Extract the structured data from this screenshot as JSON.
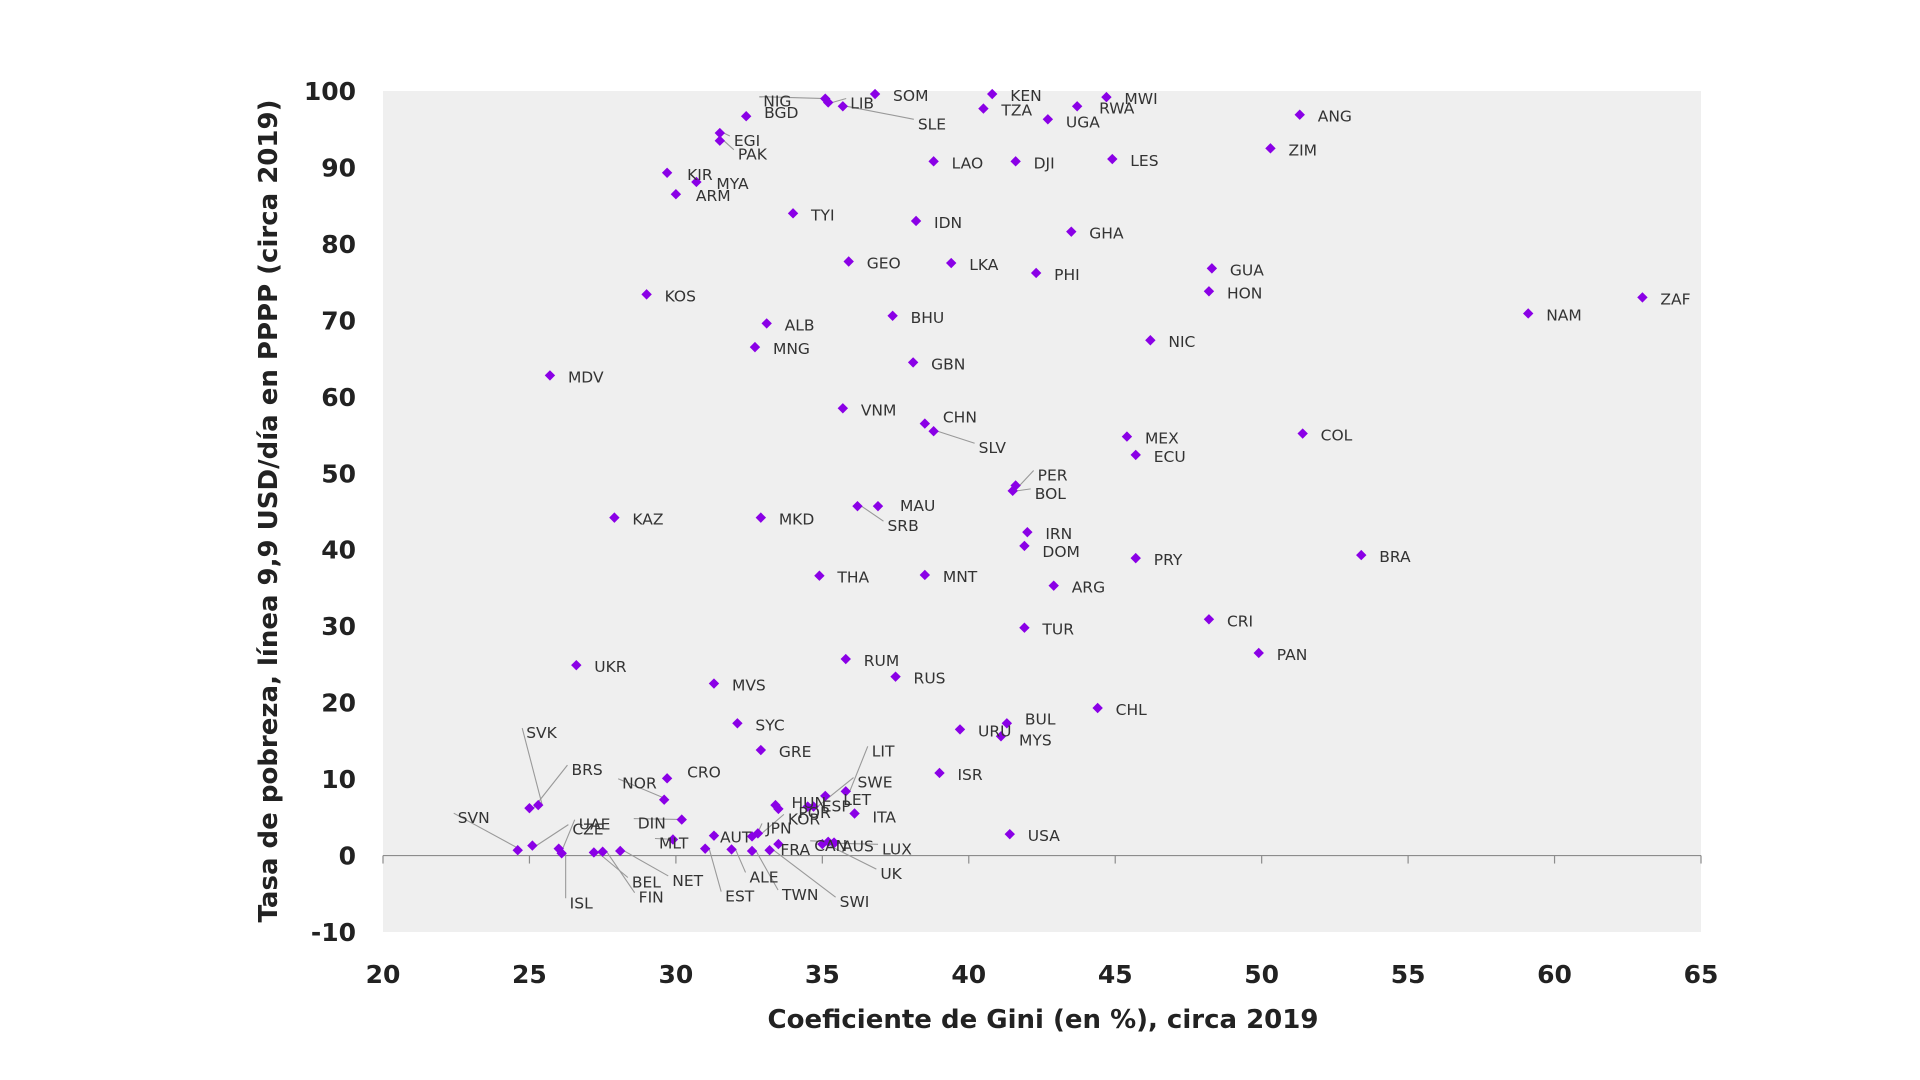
{
  "colors": {
    "marker": "#8a00e6",
    "plot_bg": "#efefef",
    "text": "#333333",
    "axis": "#666666"
  },
  "chart_data": {
    "type": "scatter",
    "xlabel": "Coeficiente de Gini (en %), circa 2019",
    "ylabel": "Tasa de pobreza, línea 9,9 USD/día en PPPP (circa 2019)",
    "xlim": [
      20,
      65
    ],
    "ylim": [
      -10,
      100
    ],
    "xticks": [
      20,
      25,
      30,
      35,
      40,
      45,
      50,
      55,
      60,
      65
    ],
    "yticks": [
      -10,
      0,
      10,
      20,
      30,
      40,
      50,
      60,
      70,
      80,
      90,
      100
    ],
    "grid": false,
    "points": [
      {
        "label": "SOM",
        "x": 36.8,
        "y": 99.6
      },
      {
        "label": "KEN",
        "x": 40.8,
        "y": 99.6
      },
      {
        "label": "MWI",
        "x": 44.7,
        "y": 99.2
      },
      {
        "label": "NIG",
        "x": 35.1,
        "y": 99.0
      },
      {
        "label": "LIB",
        "x": 35.2,
        "y": 98.5
      },
      {
        "label": "SLE",
        "x": 35.7,
        "y": 98.0
      },
      {
        "label": "RWA",
        "x": 43.7,
        "y": 98.0
      },
      {
        "label": "TZA",
        "x": 40.5,
        "y": 97.7
      },
      {
        "label": "BGD",
        "x": 32.4,
        "y": 96.7
      },
      {
        "label": "ANG",
        "x": 51.3,
        "y": 96.9
      },
      {
        "label": "UGA",
        "x": 42.7,
        "y": 96.3
      },
      {
        "label": "EGI",
        "x": 31.5,
        "y": 94.5
      },
      {
        "label": "PAK",
        "x": 31.5,
        "y": 93.5
      },
      {
        "label": "ZIM",
        "x": 50.3,
        "y": 92.5
      },
      {
        "label": "LAO",
        "x": 38.8,
        "y": 90.8
      },
      {
        "label": "DJI",
        "x": 41.6,
        "y": 90.8
      },
      {
        "label": "LES",
        "x": 44.9,
        "y": 91.1
      },
      {
        "label": "KIR",
        "x": 29.7,
        "y": 89.3
      },
      {
        "label": "MYA",
        "x": 30.7,
        "y": 88.1
      },
      {
        "label": "ARM",
        "x": 30.0,
        "y": 86.5
      },
      {
        "label": "TYI",
        "x": 34.0,
        "y": 84.0
      },
      {
        "label": "IDN",
        "x": 38.2,
        "y": 83.0
      },
      {
        "label": "GHA",
        "x": 43.5,
        "y": 81.6
      },
      {
        "label": "GEO",
        "x": 35.9,
        "y": 77.7
      },
      {
        "label": "LKA",
        "x": 39.4,
        "y": 77.5
      },
      {
        "label": "GUA",
        "x": 48.3,
        "y": 76.8
      },
      {
        "label": "PHI",
        "x": 42.3,
        "y": 76.2
      },
      {
        "label": "HON",
        "x": 48.2,
        "y": 73.8
      },
      {
        "label": "KOS",
        "x": 29.0,
        "y": 73.4
      },
      {
        "label": "ZAF",
        "x": 63.0,
        "y": 73.0
      },
      {
        "label": "NAM",
        "x": 59.1,
        "y": 70.9
      },
      {
        "label": "BHU",
        "x": 37.4,
        "y": 70.6
      },
      {
        "label": "ALB",
        "x": 33.1,
        "y": 69.6
      },
      {
        "label": "NIC",
        "x": 46.2,
        "y": 67.4
      },
      {
        "label": "MNG",
        "x": 32.7,
        "y": 66.5
      },
      {
        "label": "GBN",
        "x": 38.1,
        "y": 64.5
      },
      {
        "label": "MDV",
        "x": 25.7,
        "y": 62.8
      },
      {
        "label": "VNM",
        "x": 35.7,
        "y": 58.5
      },
      {
        "label": "CHN",
        "x": 38.5,
        "y": 56.5
      },
      {
        "label": "SLV",
        "x": 38.8,
        "y": 55.5
      },
      {
        "label": "COL",
        "x": 51.4,
        "y": 55.2
      },
      {
        "label": "MEX",
        "x": 45.4,
        "y": 54.8
      },
      {
        "label": "ECU",
        "x": 45.7,
        "y": 52.4
      },
      {
        "label": "PER",
        "x": 41.6,
        "y": 48.4
      },
      {
        "label": "BOL",
        "x": 41.5,
        "y": 47.7
      },
      {
        "label": "MAU",
        "x": 36.9,
        "y": 45.7
      },
      {
        "label": "SRB",
        "x": 36.2,
        "y": 45.7
      },
      {
        "label": "KAZ",
        "x": 27.9,
        "y": 44.2
      },
      {
        "label": "MKD",
        "x": 32.9,
        "y": 44.2
      },
      {
        "label": "IRN",
        "x": 42.0,
        "y": 42.3
      },
      {
        "label": "DOM",
        "x": 41.9,
        "y": 40.5
      },
      {
        "label": "BRA",
        "x": 53.4,
        "y": 39.3
      },
      {
        "label": "PRY",
        "x": 45.7,
        "y": 38.9
      },
      {
        "label": "THA",
        "x": 34.9,
        "y": 36.6
      },
      {
        "label": "MNT",
        "x": 38.5,
        "y": 36.7
      },
      {
        "label": "ARG",
        "x": 42.9,
        "y": 35.3
      },
      {
        "label": "CRI",
        "x": 48.2,
        "y": 30.9
      },
      {
        "label": "TUR",
        "x": 41.9,
        "y": 29.8
      },
      {
        "label": "PAN",
        "x": 49.9,
        "y": 26.5
      },
      {
        "label": "RUM",
        "x": 35.8,
        "y": 25.7
      },
      {
        "label": "UKR",
        "x": 26.6,
        "y": 24.9
      },
      {
        "label": "RUS",
        "x": 37.5,
        "y": 23.4
      },
      {
        "label": "MVS",
        "x": 31.3,
        "y": 22.5
      },
      {
        "label": "CHL",
        "x": 44.4,
        "y": 19.3
      },
      {
        "label": "SYC",
        "x": 32.1,
        "y": 17.3
      },
      {
        "label": "BUL",
        "x": 41.3,
        "y": 17.3
      },
      {
        "label": "URU",
        "x": 39.7,
        "y": 16.5
      },
      {
        "label": "MYS",
        "x": 41.1,
        "y": 15.6
      },
      {
        "label": "GRE",
        "x": 32.9,
        "y": 13.8
      },
      {
        "label": "ISR",
        "x": 39.0,
        "y": 10.8
      },
      {
        "label": "CRO",
        "x": 29.7,
        "y": 10.1
      },
      {
        "label": "LIT",
        "x": 35.8,
        "y": 8.4
      },
      {
        "label": "LET",
        "x": 35.1,
        "y": 7.8
      },
      {
        "label": "NOR",
        "x": 29.6,
        "y": 7.3
      },
      {
        "label": "HUN",
        "x": 33.4,
        "y": 6.6
      },
      {
        "label": "SWE",
        "x": 34.7,
        "y": 6.4
      },
      {
        "label": "ESP",
        "x": 34.5,
        "y": 6.4
      },
      {
        "label": "SVK",
        "x": 25.3,
        "y": 6.6
      },
      {
        "label": "BRS",
        "x": 25.0,
        "y": 6.2
      },
      {
        "label": "POR",
        "x": 33.5,
        "y": 6.1
      },
      {
        "label": "ITA",
        "x": 36.1,
        "y": 5.5
      },
      {
        "label": "DIN",
        "x": 30.2,
        "y": 4.7
      },
      {
        "label": "KOR",
        "x": 32.8,
        "y": 2.9
      },
      {
        "label": "JPN",
        "x": 32.6,
        "y": 2.5
      },
      {
        "label": "USA",
        "x": 41.4,
        "y": 2.8
      },
      {
        "label": "AUT",
        "x": 31.3,
        "y": 2.6
      },
      {
        "label": "CZE",
        "x": 25.1,
        "y": 1.3
      },
      {
        "label": "UAE",
        "x": 26.0,
        "y": 0.9
      },
      {
        "label": "MLT",
        "x": 29.9,
        "y": 2.1
      },
      {
        "label": "FRA",
        "x": 33.5,
        "y": 1.5
      },
      {
        "label": "CAN",
        "x": 35.2,
        "y": 1.8
      },
      {
        "label": "AUS",
        "x": 35.4,
        "y": 1.7
      },
      {
        "label": "LUX",
        "x": 35.4,
        "y": 1.6
      },
      {
        "label": "UK",
        "x": 35.0,
        "y": 1.5
      },
      {
        "label": "SVN",
        "x": 24.6,
        "y": 0.7
      },
      {
        "label": "ISL",
        "x": 26.1,
        "y": 0.3
      },
      {
        "label": "BEL",
        "x": 27.2,
        "y": 0.4
      },
      {
        "label": "NET",
        "x": 28.1,
        "y": 0.6
      },
      {
        "label": "FIN",
        "x": 27.5,
        "y": 0.5
      },
      {
        "label": "EST",
        "x": 31.0,
        "y": 0.9
      },
      {
        "label": "ALE",
        "x": 31.9,
        "y": 0.8
      },
      {
        "label": "TWN",
        "x": 32.6,
        "y": 0.6
      },
      {
        "label": "SWI",
        "x": 33.2,
        "y": 0.7
      }
    ]
  }
}
